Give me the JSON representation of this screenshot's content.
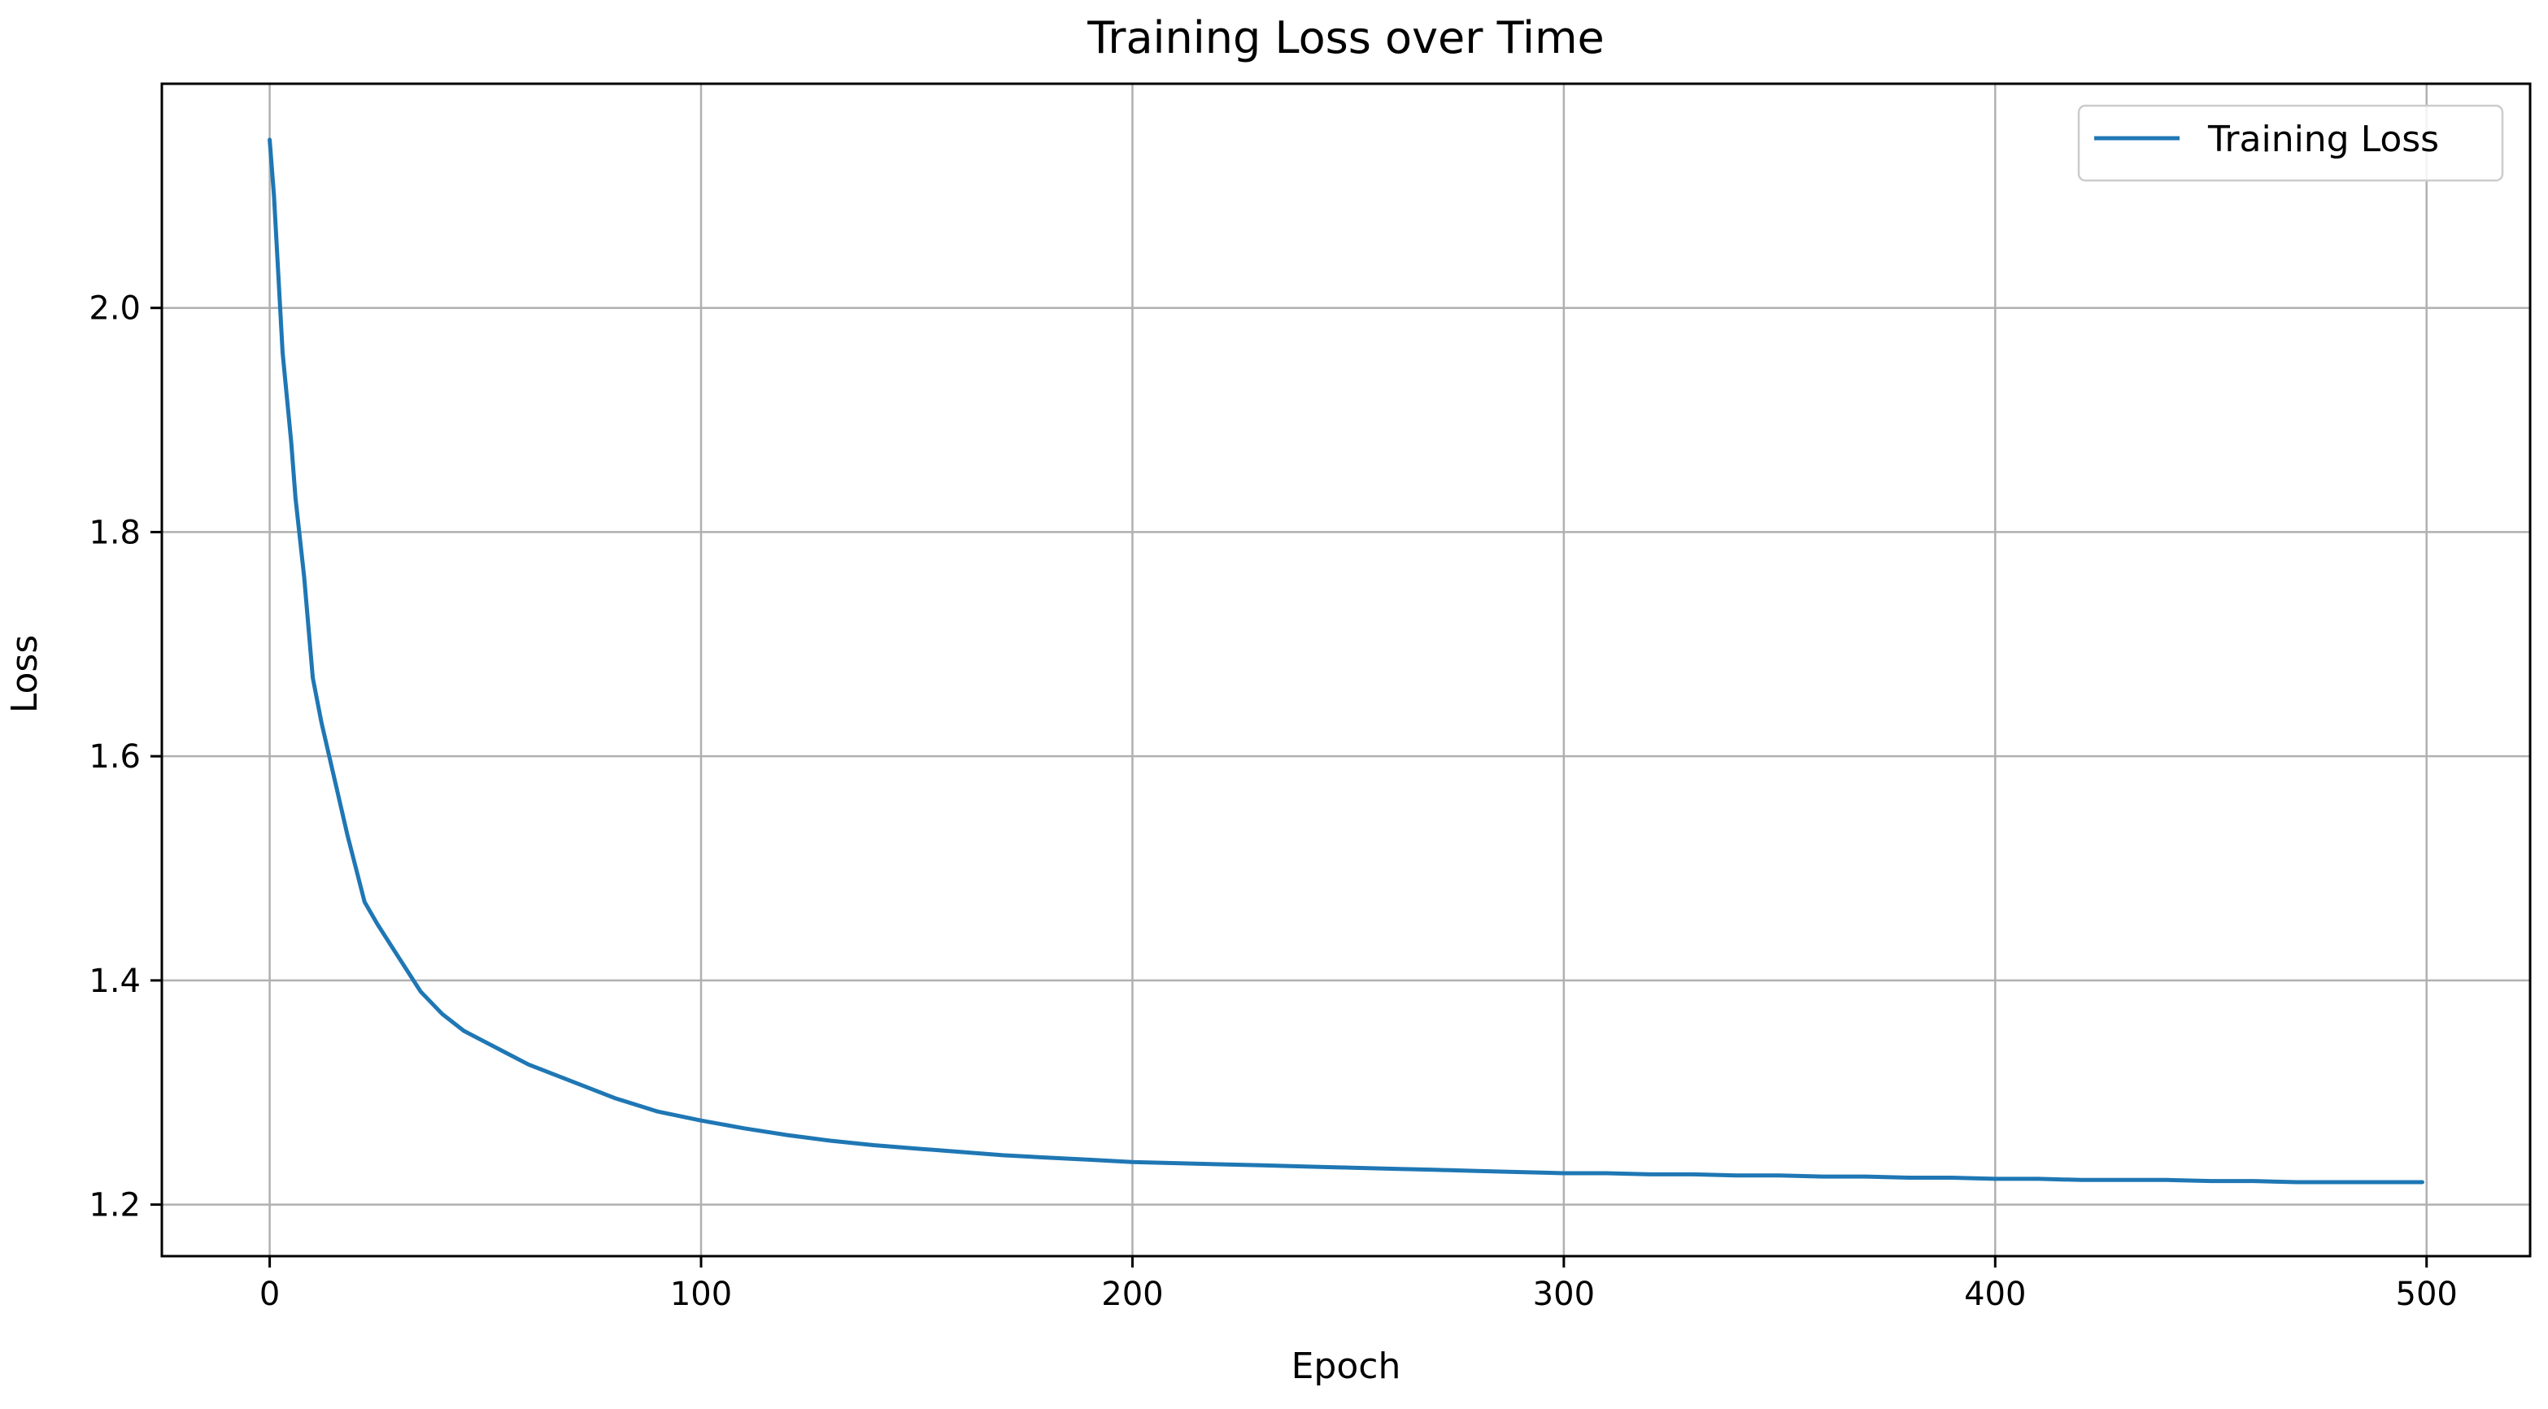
{
  "chart_data": {
    "type": "line",
    "title": "Training Loss over Time",
    "xlabel": "Epoch",
    "ylabel": "Loss",
    "xlim": [
      -25,
      524
    ],
    "ylim": [
      1.154,
      2.2
    ],
    "xticks": [
      0,
      100,
      200,
      300,
      400,
      500
    ],
    "yticks": [
      1.2,
      1.4,
      1.6,
      1.8,
      2.0
    ],
    "grid": true,
    "legend_position": "top-right",
    "series": [
      {
        "name": "Training Loss",
        "color": "#1f77b4",
        "x": [
          0,
          1,
          2,
          3,
          4,
          5,
          6,
          8,
          10,
          12,
          15,
          18,
          20,
          22,
          25,
          30,
          35,
          40,
          45,
          50,
          55,
          60,
          70,
          80,
          90,
          100,
          110,
          120,
          130,
          140,
          150,
          160,
          170,
          180,
          190,
          200,
          210,
          220,
          230,
          240,
          250,
          260,
          270,
          280,
          290,
          300,
          310,
          320,
          330,
          340,
          350,
          360,
          370,
          380,
          390,
          400,
          410,
          420,
          430,
          440,
          450,
          460,
          470,
          480,
          490,
          499
        ],
        "y": [
          2.15,
          2.1,
          2.03,
          1.96,
          1.92,
          1.88,
          1.83,
          1.76,
          1.67,
          1.63,
          1.58,
          1.53,
          1.5,
          1.47,
          1.45,
          1.42,
          1.39,
          1.37,
          1.355,
          1.345,
          1.335,
          1.325,
          1.31,
          1.295,
          1.283,
          1.275,
          1.268,
          1.262,
          1.257,
          1.253,
          1.25,
          1.247,
          1.244,
          1.242,
          1.24,
          1.238,
          1.237,
          1.236,
          1.235,
          1.234,
          1.233,
          1.232,
          1.231,
          1.23,
          1.229,
          1.228,
          1.228,
          1.227,
          1.227,
          1.226,
          1.226,
          1.225,
          1.225,
          1.224,
          1.224,
          1.223,
          1.223,
          1.222,
          1.222,
          1.222,
          1.221,
          1.221,
          1.22,
          1.22,
          1.22,
          1.22
        ]
      }
    ]
  }
}
